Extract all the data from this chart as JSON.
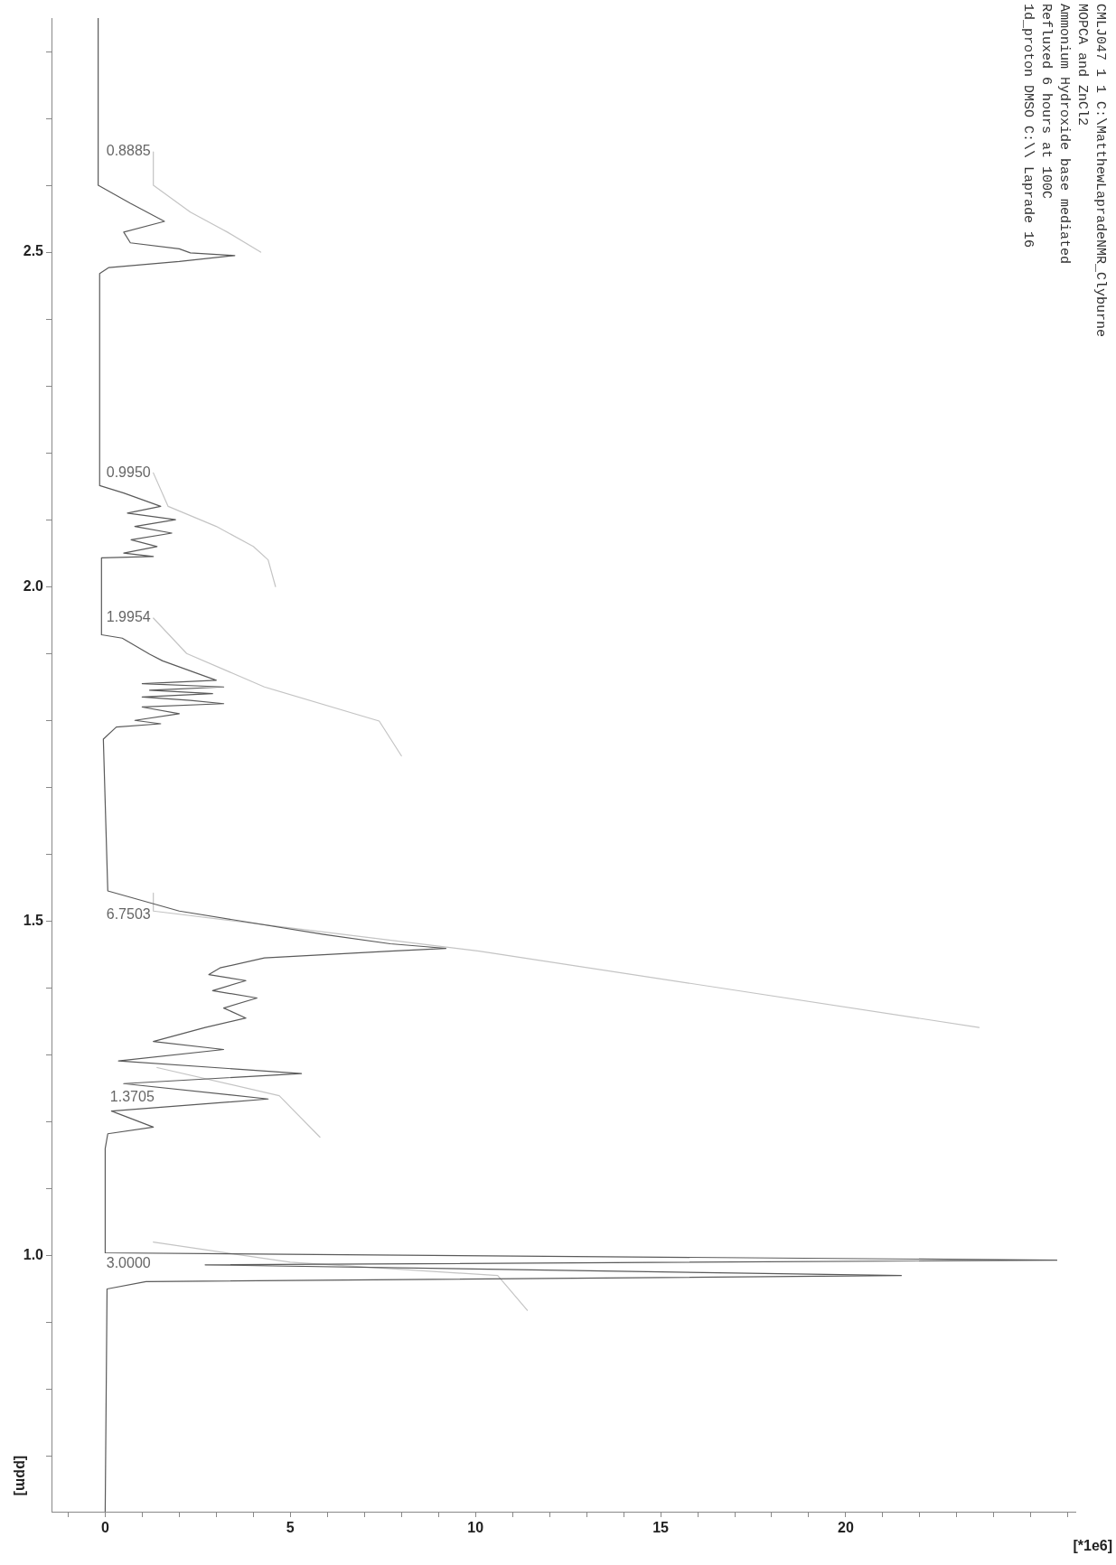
{
  "chart_data": {
    "type": "line",
    "orientation": "horizontal",
    "xlabel": "[*1e6]",
    "ylabel": "[ppm]",
    "xlim": [
      -1.45,
      26.2
    ],
    "ylim": [
      0.617,
      2.85
    ],
    "xticks": [
      {
        "value": -1,
        "label": null
      },
      0,
      {
        "value": 1,
        "label": null
      },
      {
        "value": 2,
        "label": null
      },
      {
        "value": 3,
        "label": null
      },
      {
        "value": 4,
        "label": null
      },
      5,
      {
        "value": 6,
        "label": null
      },
      {
        "value": 7,
        "label": null
      },
      {
        "value": 8,
        "label": null
      },
      {
        "value": 9,
        "label": null
      },
      10,
      {
        "value": 11,
        "label": null
      },
      {
        "value": 12,
        "label": null
      },
      {
        "value": 13,
        "label": null
      },
      {
        "value": 14,
        "label": null
      },
      15,
      {
        "value": 16,
        "label": null
      },
      {
        "value": 17,
        "label": null
      },
      {
        "value": 18,
        "label": null
      },
      {
        "value": 19,
        "label": null
      },
      20,
      {
        "value": 21,
        "label": null
      },
      {
        "value": 22,
        "label": null
      },
      {
        "value": 23,
        "label": null
      },
      {
        "value": 24,
        "label": null
      },
      {
        "value": 25,
        "label": null
      },
      {
        "value": 26,
        "label": null
      }
    ],
    "yticks": [
      {
        "value": 0.7,
        "label": null
      },
      {
        "value": 0.8,
        "label": null
      },
      {
        "value": 0.9,
        "label": null
      },
      {
        "value": 1.0,
        "label": "1.0"
      },
      {
        "value": 1.1,
        "label": null
      },
      {
        "value": 1.2,
        "label": null
      },
      {
        "value": 1.3,
        "label": null
      },
      {
        "value": 1.4,
        "label": null
      },
      {
        "value": 1.5,
        "label": "1.5"
      },
      {
        "value": 1.6,
        "label": null
      },
      {
        "value": 1.7,
        "label": null
      },
      {
        "value": 1.8,
        "label": null
      },
      {
        "value": 1.9,
        "label": null
      },
      {
        "value": 2.0,
        "label": "2.0"
      },
      {
        "value": 2.1,
        "label": null
      },
      {
        "value": 2.2,
        "label": null
      },
      {
        "value": 2.3,
        "label": null
      },
      {
        "value": 2.4,
        "label": null
      },
      {
        "value": 2.5,
        "label": "2.5"
      },
      {
        "value": 2.6,
        "label": null
      },
      {
        "value": 2.7,
        "label": null
      },
      {
        "value": 2.8,
        "label": null
      }
    ],
    "grid": false,
    "legend": false,
    "series": [
      {
        "color": "#5a5a5a",
        "x": [
          2.85,
          2.6,
          2.573,
          2.546,
          2.53,
          2.514,
          2.505,
          2.499,
          2.495,
          2.486,
          2.477,
          2.468,
          2.151,
          2.14,
          2.12,
          2.11,
          2.1,
          2.09,
          2.08,
          2.07,
          2.06,
          2.05,
          2.045,
          2.043,
          1.928,
          1.923,
          1.899,
          1.889,
          1.86,
          1.855,
          1.85,
          1.845,
          1.84,
          1.835,
          1.83,
          1.825,
          1.82,
          1.81,
          1.8,
          1.795,
          1.79,
          1.772,
          1.545,
          1.515,
          1.48,
          1.466,
          1.462,
          1.459,
          1.455,
          1.445,
          1.43,
          1.42,
          1.411,
          1.396,
          1.385,
          1.37,
          1.355,
          1.341,
          1.32,
          1.308,
          1.291,
          1.272,
          1.257,
          1.234,
          1.216,
          1.192,
          1.182,
          1.16,
          1.004,
          0.993,
          0.986,
          0.97,
          0.961,
          0.95,
          0.617
        ],
        "values": [
          -0.19,
          -0.19,
          0.68,
          1.6,
          0.5,
          0.68,
          2.0,
          2.3,
          3.5,
          2.0,
          0.1,
          -0.15,
          -0.15,
          0.5,
          1.5,
          0.6,
          1.9,
          0.8,
          1.8,
          0.7,
          1.4,
          0.5,
          1.3,
          -0.1,
          -0.1,
          0.46,
          1.2,
          1.55,
          3.0,
          1.0,
          3.2,
          1.2,
          2.9,
          1.0,
          2.3,
          3.2,
          1.0,
          2.0,
          0.8,
          1.5,
          0.3,
          -0.05,
          0.07,
          2.0,
          5.9,
          7.7,
          8.6,
          9.2,
          7.7,
          4.3,
          3.1,
          2.8,
          3.8,
          2.9,
          4.1,
          3.2,
          3.8,
          2.7,
          1.3,
          3.2,
          0.36,
          5.3,
          0.5,
          4.4,
          0.17,
          1.3,
          0.07,
          0.0,
          0.0,
          25.7,
          2.7,
          21.5,
          1.1,
          0.05,
          0.0
        ]
      },
      {
        "name": "0.8885",
        "color": "#c4c4c4",
        "x": [
          2.65,
          2.6,
          2.56,
          2.53,
          2.5
        ],
        "values": [
          1.3,
          1.3,
          2.3,
          3.3,
          4.2
        ]
      },
      {
        "name": "0.9950",
        "color": "#c4c4c4",
        "x": [
          2.17,
          2.12,
          2.09,
          2.06,
          2.04,
          2.0
        ],
        "values": [
          1.3,
          1.7,
          3.0,
          4.0,
          4.4,
          4.6
        ]
      },
      {
        "name": "1.9954",
        "color": "#c4c4c4",
        "x": [
          1.953,
          1.9,
          1.85,
          1.799,
          1.747
        ],
        "values": [
          1.3,
          2.2,
          4.3,
          7.4,
          8.0
        ]
      },
      {
        "name": "6.7503",
        "color": "#c4c4c4",
        "x": [
          1.542,
          1.515,
          1.455,
          1.341
        ],
        "values": [
          1.3,
          1.3,
          10.1,
          23.6
        ]
      },
      {
        "name": "1.3705",
        "color": "#c4c4c4",
        "x": [
          1.281,
          1.239,
          1.177
        ],
        "values": [
          1.4,
          4.7,
          5.8
        ]
      },
      {
        "name": "3.0000",
        "color": "#c4c4c4",
        "x": [
          1.02,
          0.99,
          0.97,
          0.918
        ],
        "values": [
          1.3,
          5.0,
          10.6,
          11.4
        ]
      }
    ],
    "annotations": [
      "CMLJ047 1 1 C:\\MatthewLapradeNMR_Clyburne",
      "MOPCA and ZnCl2",
      "Ammonium Hydroxide base mediated",
      "Refluxed 6 hours at 100C",
      "1d_proton DMSO C:\\\\ Laprade 16"
    ]
  }
}
